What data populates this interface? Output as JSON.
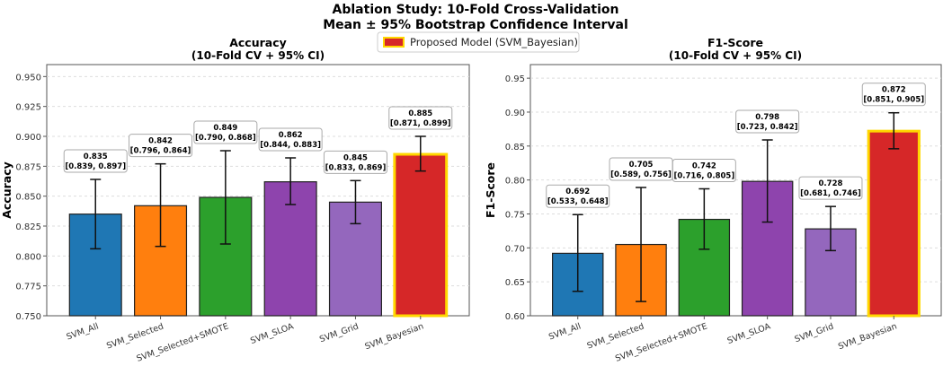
{
  "suptitle": [
    "Ablation Study: 10-Fold Cross-Validation",
    "Mean ± 95% Bootstrap Confidence Interval"
  ],
  "legend": {
    "label": "Proposed Model (SVM_Bayesian)",
    "color": "#d62728",
    "edge": "#ffd700",
    "placement": "top-center"
  },
  "chart_data": [
    {
      "type": "bar",
      "title": [
        "Accuracy",
        "(10-Fold CV + 95% CI)"
      ],
      "xlabel": "",
      "ylabel": "Accuracy",
      "ylim": [
        0.75,
        0.96
      ],
      "yticks": [
        "0.750",
        "0.775",
        "0.800",
        "0.825",
        "0.850",
        "0.875",
        "0.900",
        "0.925",
        "0.950"
      ],
      "grid": "y-dashed",
      "categories": [
        "SVM_All",
        "SVM_Selected",
        "SVM_Selected+SMOTE",
        "SVM_SLOA",
        "SVM_Grid",
        "SVM_Bayesian"
      ],
      "colors": [
        "#1f77b4",
        "#ff7f0e",
        "#2ca02c",
        "#8e44ad",
        "#9467bd",
        "#d62728"
      ],
      "values": [
        0.835,
        0.842,
        0.849,
        0.862,
        0.845,
        0.885
      ],
      "error_low": [
        0.806,
        0.808,
        0.81,
        0.843,
        0.827,
        0.871
      ],
      "error_high": [
        0.864,
        0.877,
        0.888,
        0.882,
        0.863,
        0.9
      ],
      "labels": [
        [
          "0.835",
          "[0.839, 0.897]"
        ],
        [
          "0.842",
          "[0.796, 0.864]"
        ],
        [
          "0.849",
          "[0.790, 0.868]"
        ],
        [
          "0.862",
          "[0.844, 0.883]"
        ],
        [
          "0.845",
          "[0.833, 0.869]"
        ],
        [
          "0.885",
          "[0.871, 0.899]"
        ]
      ]
    },
    {
      "type": "bar",
      "title": [
        "F1-Score",
        "(10-Fold CV + 95% CI)"
      ],
      "xlabel": "",
      "ylabel": "F1-Score",
      "ylim": [
        0.6,
        0.97
      ],
      "yticks": [
        "0.60",
        "0.65",
        "0.70",
        "0.75",
        "0.80",
        "0.85",
        "0.90",
        "0.95"
      ],
      "grid": "y-dashed",
      "categories": [
        "SVM_All",
        "SVM_Selected",
        "SVM_Selected+SMOTE",
        "SVM_SLOA",
        "SVM_Grid",
        "SVM_Bayesian"
      ],
      "colors": [
        "#1f77b4",
        "#ff7f0e",
        "#2ca02c",
        "#8e44ad",
        "#9467bd",
        "#d62728"
      ],
      "values": [
        0.692,
        0.705,
        0.742,
        0.798,
        0.728,
        0.872
      ],
      "error_low": [
        0.636,
        0.621,
        0.698,
        0.738,
        0.696,
        0.846
      ],
      "error_high": [
        0.749,
        0.789,
        0.787,
        0.859,
        0.761,
        0.899
      ],
      "labels": [
        [
          "0.692",
          "[0.533, 0.648]"
        ],
        [
          "0.705",
          "[0.589, 0.756]"
        ],
        [
          "0.742",
          "[0.716, 0.805]"
        ],
        [
          "0.798",
          "[0.723, 0.842]"
        ],
        [
          "0.728",
          "[0.681, 0.746]"
        ],
        [
          "0.872",
          "[0.851, 0.905]"
        ]
      ]
    }
  ]
}
